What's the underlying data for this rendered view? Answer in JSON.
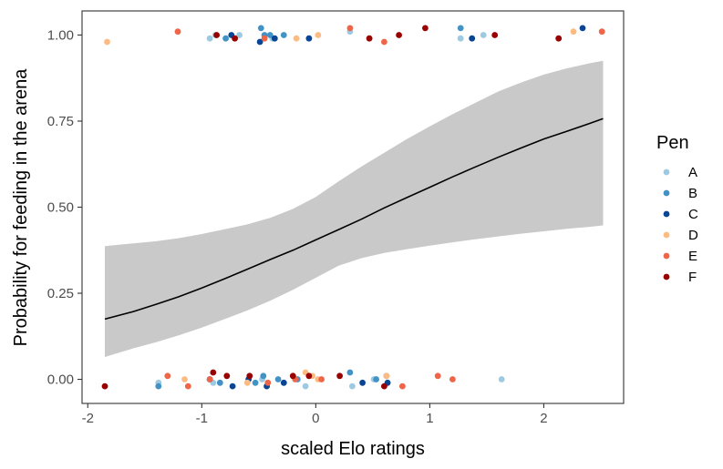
{
  "chart_data": {
    "type": "scatter",
    "title": "",
    "xlabel": "scaled Elo ratings",
    "ylabel": "Probability for feeding in the arena",
    "xlim": [
      -2.05,
      2.7
    ],
    "ylim": [
      -0.07,
      1.07
    ],
    "x_ticks": [
      -2,
      -1,
      0,
      1,
      2
    ],
    "x_tick_labels": [
      "-2",
      "-1",
      "0",
      "1",
      "2"
    ],
    "y_ticks": [
      0,
      0.25,
      0.5,
      0.75,
      1
    ],
    "y_tick_labels": [
      "0.00",
      "0.25",
      "0.50",
      "0.75",
      "1.00"
    ],
    "grid": false,
    "legend": {
      "title": "Pen",
      "placement": "right",
      "entries": [
        {
          "label": "A",
          "color": "#9ecae1"
        },
        {
          "label": "B",
          "color": "#4292c6"
        },
        {
          "label": "C",
          "color": "#084594"
        },
        {
          "label": "D",
          "color": "#fdbb84"
        },
        {
          "label": "E",
          "color": "#ef6548"
        },
        {
          "label": "F",
          "color": "#990000"
        }
      ]
    },
    "fit_line": {
      "color": "#000000",
      "x": [
        -1.85,
        -1.6,
        -1.4,
        -1.2,
        -1.0,
        -0.8,
        -0.6,
        -0.4,
        -0.2,
        0.0,
        0.2,
        0.4,
        0.6,
        0.8,
        1.0,
        1.2,
        1.4,
        1.6,
        1.8,
        2.0,
        2.2,
        2.4,
        2.52
      ],
      "y": [
        0.175,
        0.197,
        0.218,
        0.24,
        0.265,
        0.292,
        0.32,
        0.348,
        0.375,
        0.405,
        0.435,
        0.465,
        0.498,
        0.528,
        0.558,
        0.588,
        0.617,
        0.645,
        0.672,
        0.698,
        0.72,
        0.743,
        0.757
      ]
    },
    "confidence_band": {
      "color": "#c9c9c9",
      "x": [
        -1.85,
        -1.6,
        -1.4,
        -1.2,
        -1.0,
        -0.8,
        -0.6,
        -0.4,
        -0.2,
        0.0,
        0.2,
        0.4,
        0.6,
        0.8,
        1.0,
        1.2,
        1.4,
        1.6,
        1.8,
        2.0,
        2.2,
        2.4,
        2.52
      ],
      "lower": [
        0.065,
        0.09,
        0.108,
        0.128,
        0.15,
        0.175,
        0.2,
        0.228,
        0.26,
        0.295,
        0.33,
        0.352,
        0.367,
        0.378,
        0.388,
        0.398,
        0.407,
        0.415,
        0.423,
        0.43,
        0.437,
        0.443,
        0.447
      ],
      "upper": [
        0.387,
        0.395,
        0.401,
        0.41,
        0.422,
        0.436,
        0.45,
        0.469,
        0.495,
        0.53,
        0.575,
        0.618,
        0.658,
        0.698,
        0.735,
        0.77,
        0.803,
        0.836,
        0.862,
        0.885,
        0.903,
        0.918,
        0.925
      ]
    },
    "series": [
      {
        "name": "A",
        "color": "#9ecae1",
        "x": [
          -0.93,
          -0.88,
          -0.67,
          -0.38,
          0.3,
          1.27,
          1.47,
          -1.38,
          -0.9,
          -0.47,
          -0.09,
          0.32,
          0.51,
          1.63
        ],
        "y": [
          0.99,
          1.0,
          1.0,
          0.99,
          1.01,
          0.99,
          1.0,
          -0.01,
          -0.01,
          0.0,
          -0.02,
          -0.02,
          0.0,
          0.0
        ]
      },
      {
        "name": "B",
        "color": "#4292c6",
        "x": [
          -0.79,
          -0.48,
          -0.4,
          -0.45,
          -0.28,
          1.27,
          -1.38,
          -0.84,
          -0.46,
          -0.33,
          -0.53,
          0.3,
          0.53,
          0.62,
          -0.16
        ],
        "y": [
          0.99,
          1.02,
          1.0,
          1.0,
          1.0,
          1.02,
          -0.02,
          -0.01,
          0.01,
          0.0,
          -0.01,
          0.02,
          0.0,
          0.01,
          0.0
        ]
      },
      {
        "name": "C",
        "color": "#084594",
        "x": [
          -0.74,
          -0.49,
          -0.36,
          -0.06,
          1.37,
          2.34,
          -0.93,
          -0.73,
          -0.59,
          -0.43,
          -0.28,
          0.41,
          0.63
        ],
        "y": [
          1.0,
          0.98,
          0.99,
          0.99,
          0.99,
          1.02,
          0.0,
          -0.02,
          0.0,
          -0.02,
          -0.01,
          -0.01,
          -0.01
        ]
      },
      {
        "name": "D",
        "color": "#fdbb84",
        "x": [
          -1.83,
          -0.17,
          0.02,
          2.26,
          -1.15,
          -0.6,
          -0.09,
          -0.03,
          0.02,
          0.62
        ],
        "y": [
          0.98,
          0.99,
          1.0,
          1.01,
          0.0,
          -0.01,
          0.02,
          0.01,
          0.0,
          0.01
        ]
      },
      {
        "name": "E",
        "color": "#ef6548",
        "x": [
          -1.21,
          -0.45,
          0.3,
          0.6,
          2.51,
          -1.3,
          -1.12,
          -0.93,
          -0.42,
          -0.18,
          0.05,
          0.76,
          1.07,
          1.2
        ],
        "y": [
          1.01,
          0.99,
          1.02,
          0.98,
          1.01,
          0.01,
          -0.02,
          0.0,
          -0.01,
          0.0,
          0.0,
          -0.02,
          0.01,
          0.0
        ],
        "note": ""
      },
      {
        "name": "F",
        "color": "#990000",
        "x": [
          -0.87,
          -0.71,
          0.47,
          0.73,
          0.96,
          1.57,
          2.13,
          -1.85,
          -0.9,
          -0.78,
          -0.58,
          -0.2,
          -0.06,
          0.21,
          0.6
        ],
        "y": [
          1.0,
          0.99,
          0.99,
          1.0,
          1.02,
          1.0,
          0.99,
          -0.02,
          0.02,
          0.01,
          0.01,
          0.01,
          0.01,
          0.01,
          -0.02
        ]
      }
    ]
  }
}
